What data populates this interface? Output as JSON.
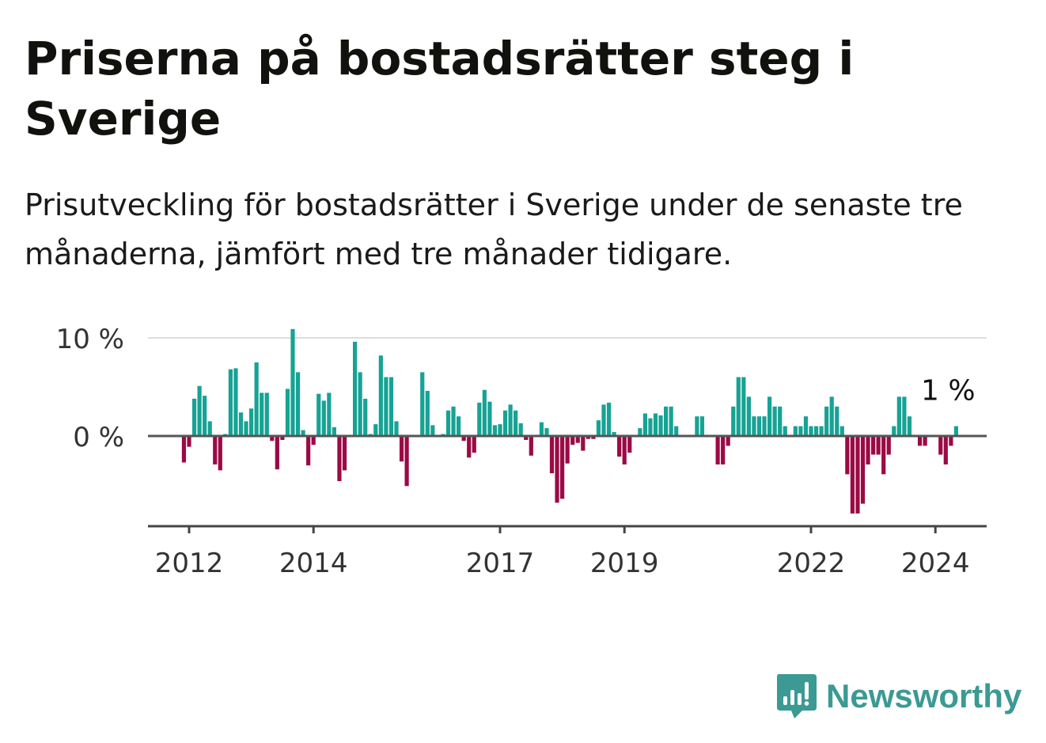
{
  "header": {
    "title": "Priserna på bostadsrätter steg i Sverige",
    "subtitle": "Prisutveckling för bostadsrätter i Sverige under de senaste tre månaderna, jämfört med tre månader tidigare."
  },
  "brand": {
    "name": "Newsworthy",
    "icon": "newsworthy-logo-icon",
    "color": "#3b9a93"
  },
  "chart_data": {
    "type": "bar",
    "title": "Priserna på bostadsrätter steg i Sverige",
    "subtitle": "Prisutveckling för bostadsrätter i Sverige under de senaste tre månaderna, jämfört med tre månader tidigare.",
    "xlabel": "",
    "ylabel": "",
    "y_ticks": [
      0,
      10
    ],
    "y_tick_labels": [
      "0 %",
      "10 %"
    ],
    "x_ticks": [
      "2012",
      "2014",
      "2017",
      "2019",
      "2022",
      "2024"
    ],
    "ylim": [
      -9.2,
      10.5
    ],
    "start": "2011-12",
    "frequency": "monthly",
    "positive_color": "#16a394",
    "negative_color": "#9b0a45",
    "grid": true,
    "annotation": {
      "label": "1 %",
      "x": "2024-03",
      "y": 1
    },
    "values": [
      -2.7,
      -1.1,
      3.8,
      5.1,
      4.1,
      1.5,
      -2.9,
      -3.5,
      0.2,
      6.8,
      6.9,
      2.4,
      1.5,
      2.8,
      7.5,
      4.4,
      4.4,
      -0.5,
      -3.4,
      -0.4,
      4.8,
      10.9,
      6.5,
      0.6,
      -3.0,
      -0.9,
      4.3,
      3.6,
      4.4,
      0.9,
      -4.6,
      -3.5,
      0,
      9.6,
      6.5,
      3.8,
      0.2,
      1.2,
      8.2,
      6.0,
      6.0,
      1.5,
      -2.6,
      -5.1,
      0,
      0,
      6.5,
      4.6,
      1.1,
      0,
      0.2,
      2.6,
      3.0,
      2.0,
      -0.5,
      -2.2,
      -1.7,
      3.4,
      4.7,
      3.5,
      1.1,
      1.2,
      2.6,
      3.2,
      2.6,
      1.3,
      -0.4,
      -2.0,
      0,
      1.4,
      0.8,
      -3.8,
      -6.8,
      -6.4,
      -2.8,
      -0.9,
      -0.7,
      -1.5,
      -0.3,
      -0.3,
      1.6,
      3.2,
      3.4,
      0.4,
      -2.1,
      -2.9,
      -1.7,
      0,
      0.8,
      2.3,
      1.8,
      2.3,
      2.1,
      3.0,
      3.0,
      1.0,
      0,
      0,
      0,
      2.0,
      2.0,
      0,
      0,
      -2.9,
      -2.9,
      -1.0,
      3.0,
      6.0,
      6.0,
      4.0,
      2.0,
      2.0,
      2.0,
      4.0,
      3.0,
      3.0,
      1.0,
      0,
      1.0,
      1.0,
      2.0,
      1.0,
      1.0,
      1.0,
      3.0,
      4.0,
      3.0,
      1.0,
      -3.9,
      -7.9,
      -7.9,
      -6.9,
      -2.9,
      -1.9,
      -1.9,
      -3.9,
      -1.9,
      1.0,
      4.0,
      4.0,
      2.0,
      0,
      -1.0,
      -1.0,
      0,
      0,
      -1.9,
      -2.9,
      -1.0,
      1.0
    ]
  }
}
